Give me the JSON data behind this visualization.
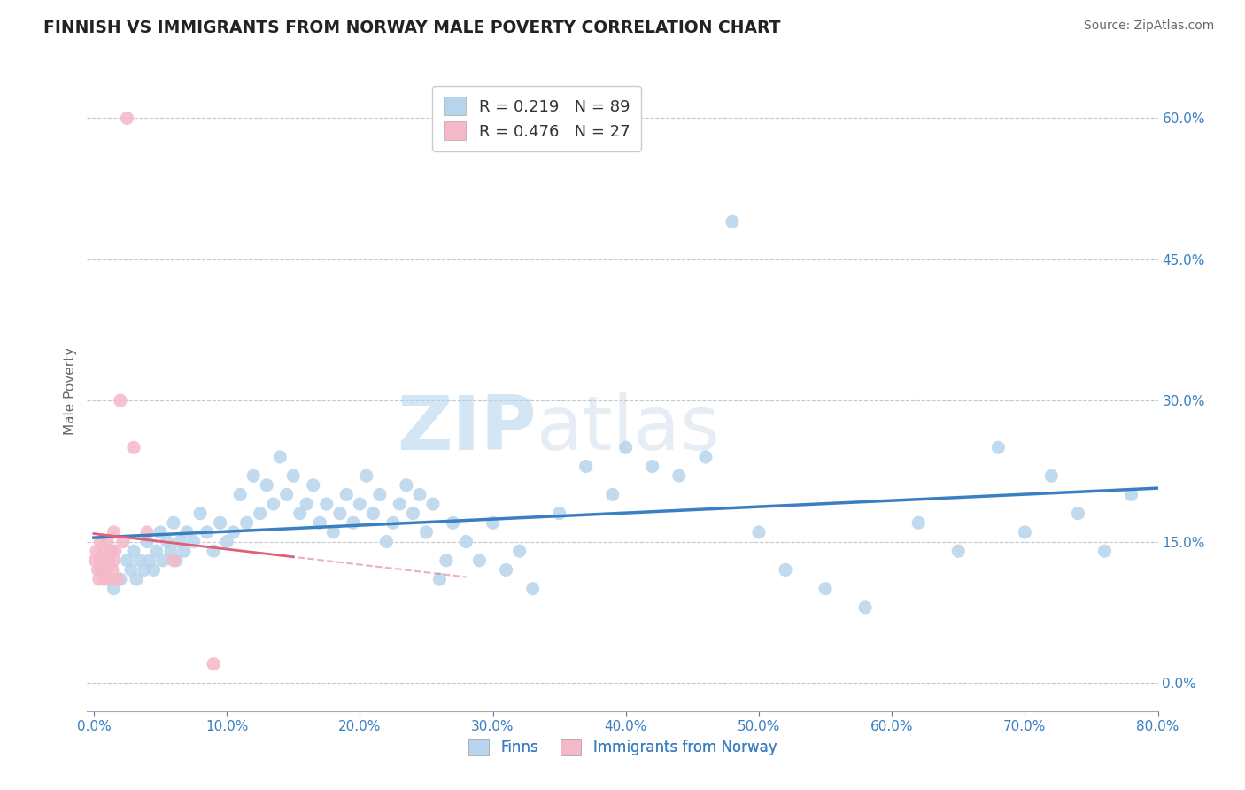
{
  "title": "FINNISH VS IMMIGRANTS FROM NORWAY MALE POVERTY CORRELATION CHART",
  "source": "Source: ZipAtlas.com",
  "ylabel": "Male Poverty",
  "xlim": [
    -0.005,
    0.8
  ],
  "ylim": [
    -0.03,
    0.65
  ],
  "xticks": [
    0.0,
    0.1,
    0.2,
    0.3,
    0.4,
    0.5,
    0.6,
    0.7,
    0.8
  ],
  "xticklabels": [
    "0.0%",
    "10.0%",
    "20.0%",
    "30.0%",
    "40.0%",
    "50.0%",
    "60.0%",
    "70.0%",
    "80.0%"
  ],
  "yticks": [
    0.0,
    0.15,
    0.3,
    0.45,
    0.6
  ],
  "yticklabels": [
    "0.0%",
    "15.0%",
    "30.0%",
    "45.0%",
    "60.0%"
  ],
  "series1_color": "#b8d4ec",
  "series2_color": "#f5b8c8",
  "trend1_color": "#3a7fc1",
  "trend2_color": "#e0607a",
  "R1": 0.219,
  "N1": 89,
  "R2": 0.476,
  "N2": 27,
  "watermark_zip": "ZIP",
  "watermark_atlas": "atlas",
  "legend_labels": [
    "Finns",
    "Immigrants from Norway"
  ],
  "finns_x": [
    0.005,
    0.01,
    0.015,
    0.02,
    0.025,
    0.028,
    0.03,
    0.032,
    0.035,
    0.038,
    0.04,
    0.042,
    0.045,
    0.047,
    0.05,
    0.052,
    0.055,
    0.058,
    0.06,
    0.062,
    0.065,
    0.068,
    0.07,
    0.075,
    0.08,
    0.085,
    0.09,
    0.095,
    0.1,
    0.105,
    0.11,
    0.115,
    0.12,
    0.125,
    0.13,
    0.135,
    0.14,
    0.145,
    0.15,
    0.155,
    0.16,
    0.165,
    0.17,
    0.175,
    0.18,
    0.185,
    0.19,
    0.195,
    0.2,
    0.205,
    0.21,
    0.215,
    0.22,
    0.225,
    0.23,
    0.235,
    0.24,
    0.245,
    0.25,
    0.255,
    0.26,
    0.265,
    0.27,
    0.28,
    0.29,
    0.3,
    0.31,
    0.32,
    0.33,
    0.35,
    0.37,
    0.39,
    0.4,
    0.42,
    0.44,
    0.46,
    0.48,
    0.5,
    0.52,
    0.55,
    0.58,
    0.62,
    0.65,
    0.68,
    0.7,
    0.72,
    0.74,
    0.76,
    0.78
  ],
  "finns_y": [
    0.12,
    0.13,
    0.1,
    0.11,
    0.13,
    0.12,
    0.14,
    0.11,
    0.13,
    0.12,
    0.15,
    0.13,
    0.12,
    0.14,
    0.16,
    0.13,
    0.15,
    0.14,
    0.17,
    0.13,
    0.15,
    0.14,
    0.16,
    0.15,
    0.18,
    0.16,
    0.14,
    0.17,
    0.15,
    0.16,
    0.2,
    0.17,
    0.22,
    0.18,
    0.21,
    0.19,
    0.24,
    0.2,
    0.22,
    0.18,
    0.19,
    0.21,
    0.17,
    0.19,
    0.16,
    0.18,
    0.2,
    0.17,
    0.19,
    0.22,
    0.18,
    0.2,
    0.15,
    0.17,
    0.19,
    0.21,
    0.18,
    0.2,
    0.16,
    0.19,
    0.11,
    0.13,
    0.17,
    0.15,
    0.13,
    0.17,
    0.12,
    0.14,
    0.1,
    0.18,
    0.23,
    0.2,
    0.25,
    0.23,
    0.22,
    0.24,
    0.49,
    0.16,
    0.12,
    0.1,
    0.08,
    0.17,
    0.14,
    0.25,
    0.16,
    0.22,
    0.18,
    0.14,
    0.2
  ],
  "norway_x": [
    0.001,
    0.002,
    0.003,
    0.004,
    0.005,
    0.005,
    0.006,
    0.007,
    0.008,
    0.009,
    0.01,
    0.01,
    0.011,
    0.012,
    0.013,
    0.014,
    0.015,
    0.015,
    0.016,
    0.018,
    0.02,
    0.022,
    0.025,
    0.03,
    0.04,
    0.06,
    0.09
  ],
  "norway_y": [
    0.13,
    0.14,
    0.12,
    0.11,
    0.13,
    0.15,
    0.12,
    0.14,
    0.11,
    0.13,
    0.12,
    0.15,
    0.13,
    0.11,
    0.14,
    0.12,
    0.16,
    0.13,
    0.14,
    0.11,
    0.3,
    0.15,
    0.6,
    0.25,
    0.16,
    0.13,
    0.02
  ]
}
